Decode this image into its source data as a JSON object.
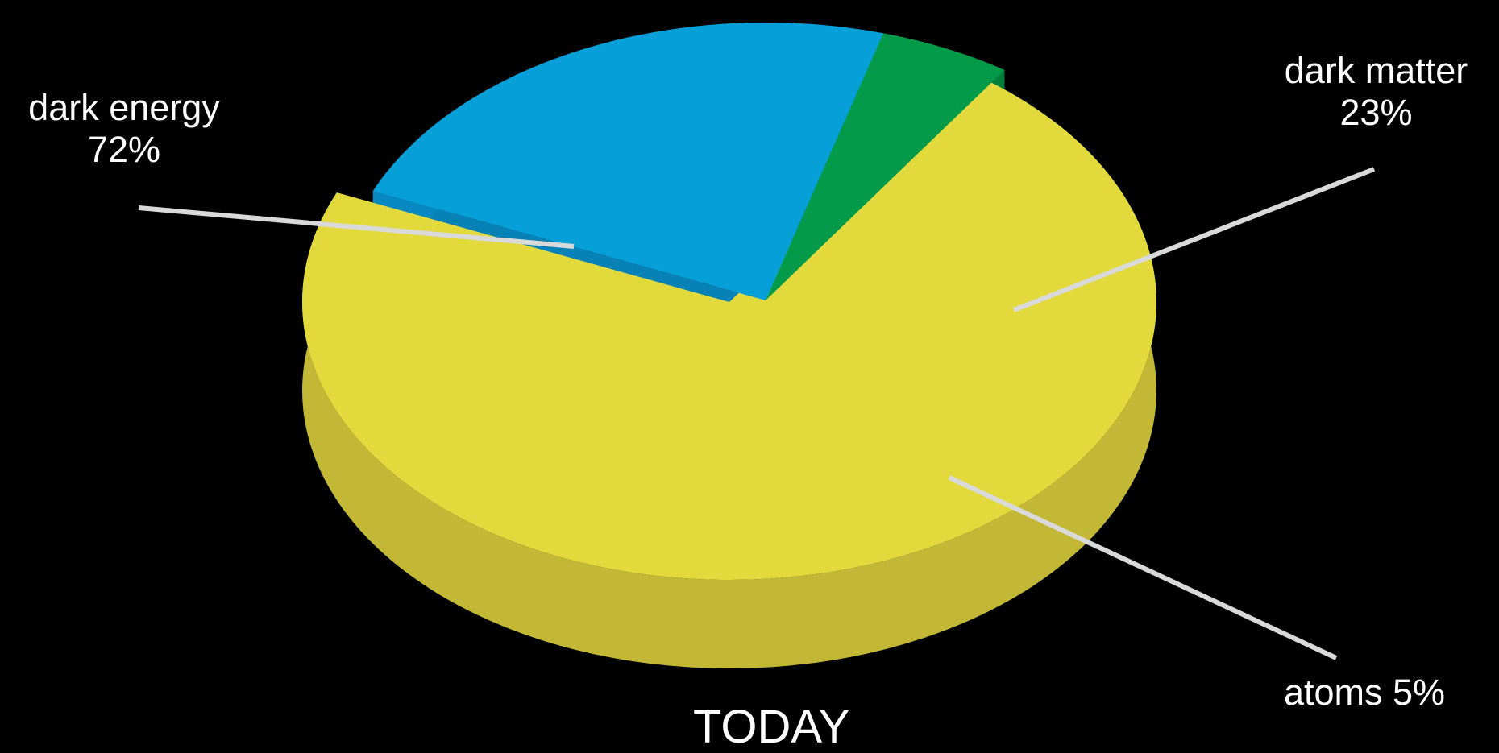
{
  "chart_data": {
    "type": "pie",
    "style": "3d-exploded",
    "slices": [
      {
        "label": "dark energy",
        "value": 72,
        "value_label": "72%",
        "color": "#e2d93c",
        "side_color": "#c2b836"
      },
      {
        "label": "dark matter",
        "value": 23,
        "value_label": "23%",
        "color": "#069fd8",
        "side_color": "#0788c0"
      },
      {
        "label": "atoms",
        "value": 5,
        "value_label": "5%",
        "color": "#039b4a",
        "side_color": "#037f3c"
      }
    ],
    "caption": "TODAY",
    "background": "#000000",
    "leader_color": "#d9d9d9"
  }
}
